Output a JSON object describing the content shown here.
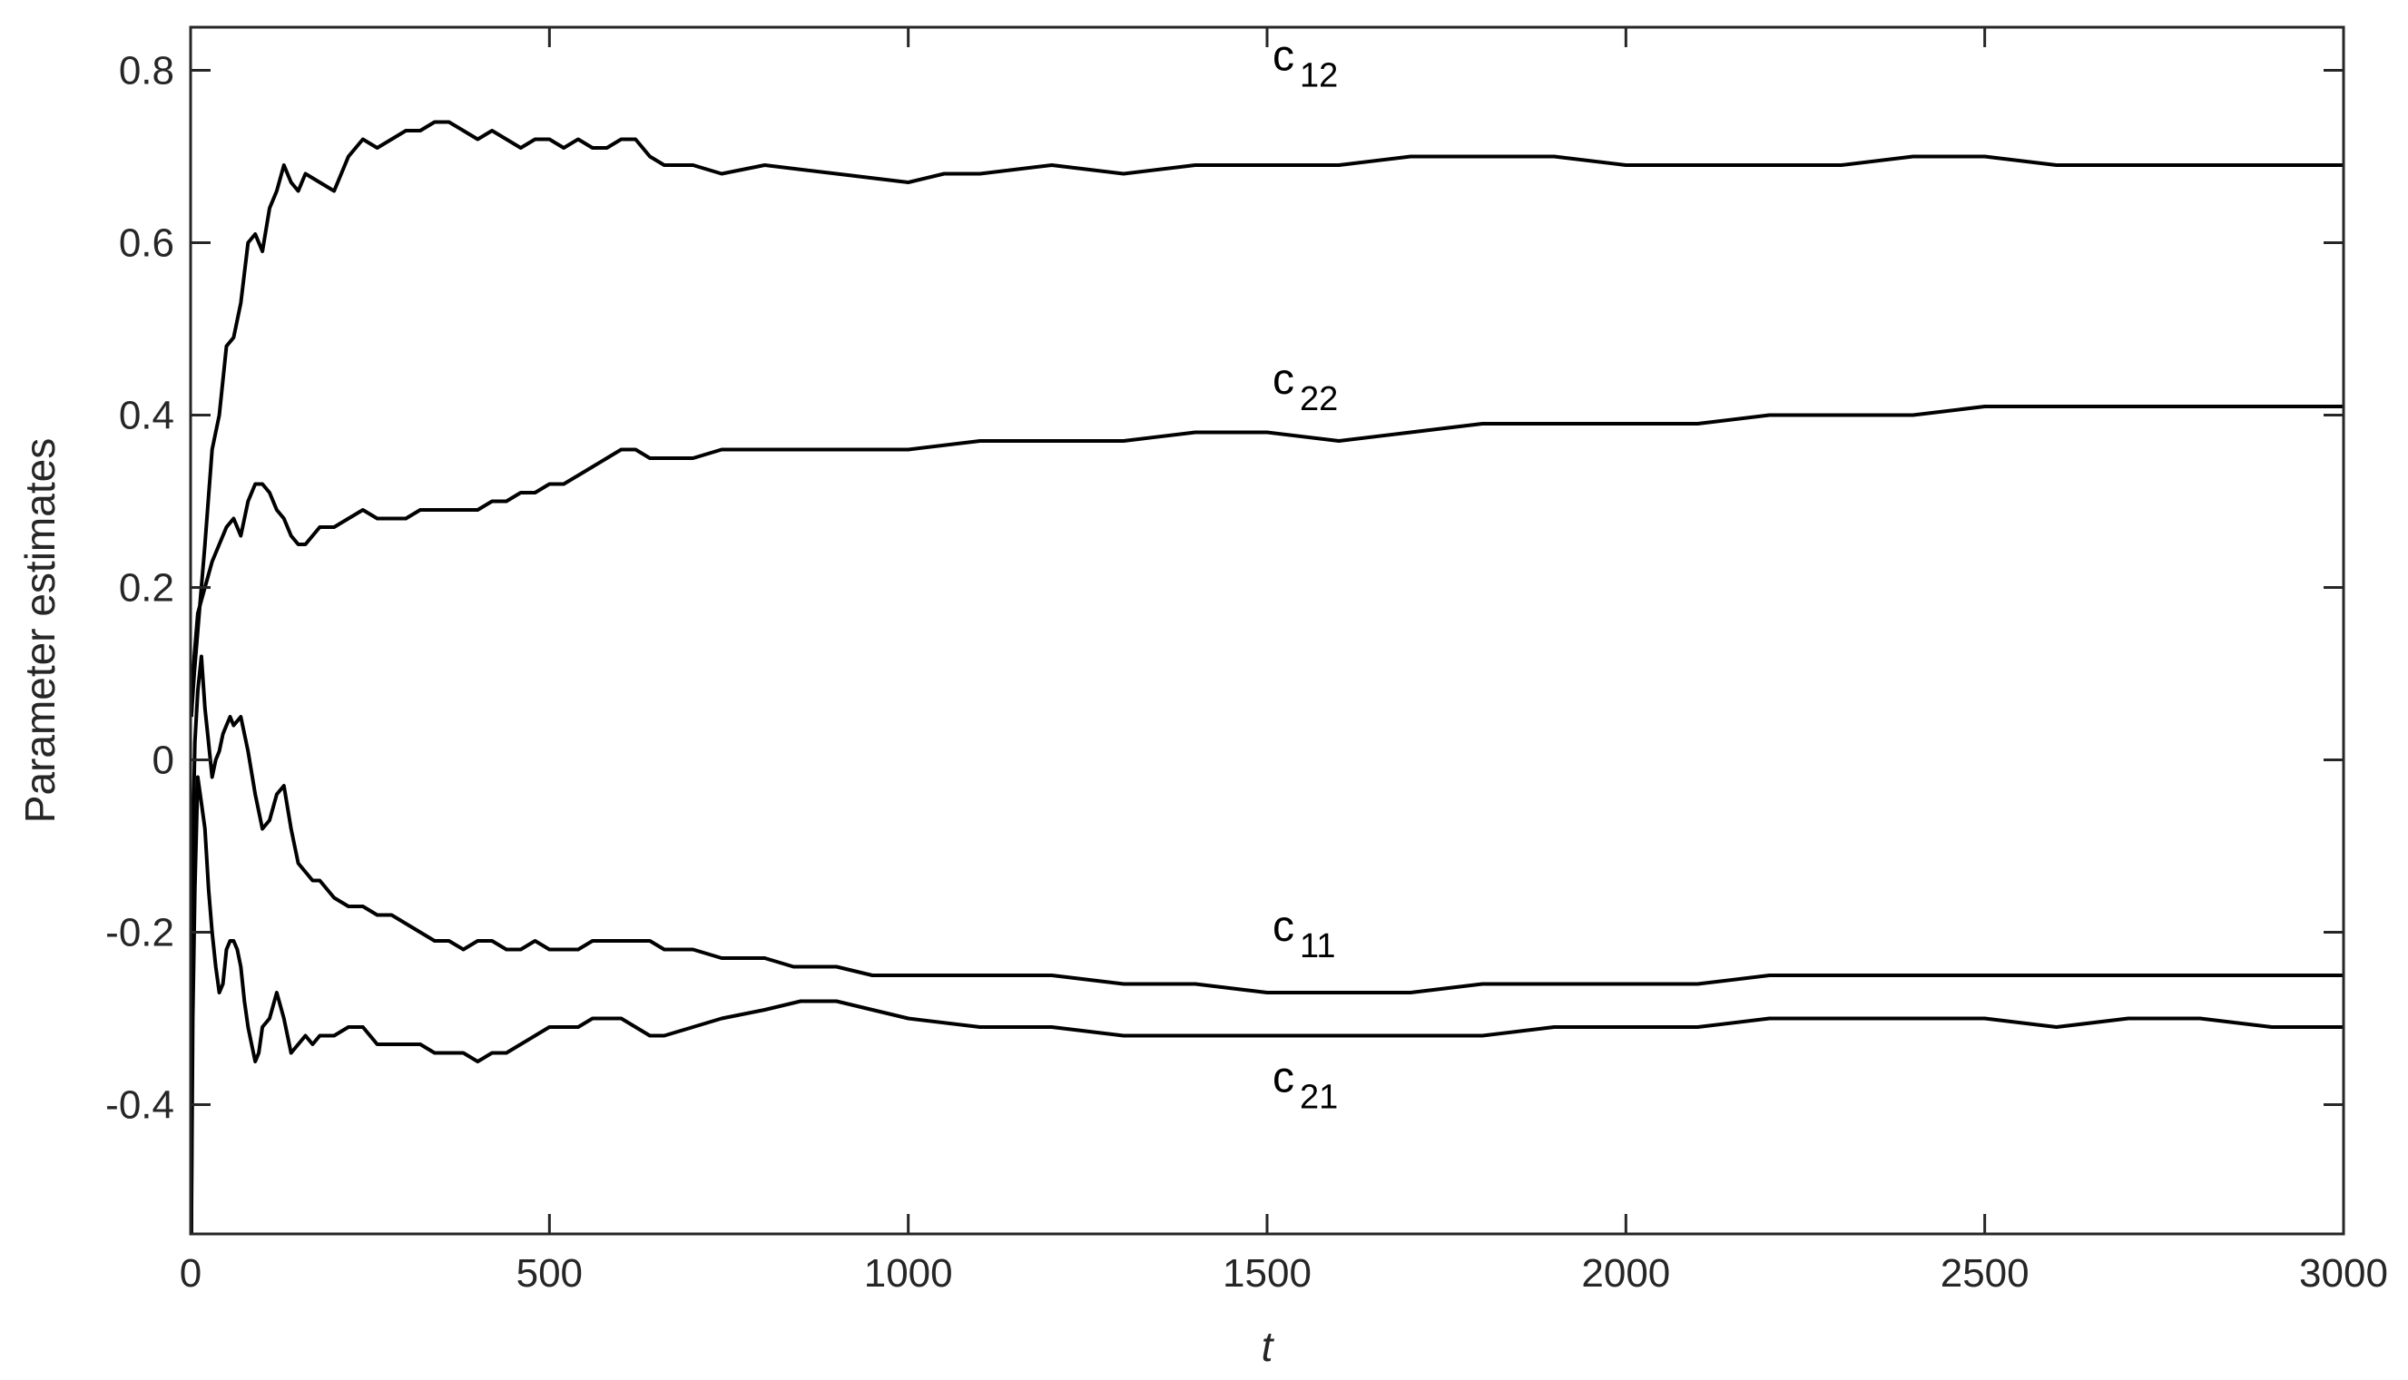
{
  "chart_data": {
    "type": "line",
    "title": "",
    "xlabel": "t",
    "ylabel": "Parameter estimates",
    "xlim": [
      0,
      3000
    ],
    "ylim": [
      -0.55,
      0.85
    ],
    "xticks": [
      0,
      500,
      1000,
      1500,
      2000,
      2500,
      3000
    ],
    "yticks": [
      -0.4,
      -0.2,
      0,
      0.2,
      0.4,
      0.6,
      0.8
    ],
    "xtick_labels": [
      "0",
      "500",
      "1000",
      "1500",
      "2000",
      "2500",
      "3000"
    ],
    "ytick_labels": [
      "-0.4",
      "-0.2",
      "0",
      "0.2",
      "0.4",
      "0.6",
      "0.8"
    ],
    "grid": false,
    "line_color": "#000000",
    "series": [
      {
        "name": "c12",
        "label_base": "c",
        "label_sub": "12",
        "label_at": [
          1500,
          0.8
        ],
        "points": [
          [
            1,
            0.05
          ],
          [
            5,
            0.1
          ],
          [
            10,
            0.15
          ],
          [
            20,
            0.25
          ],
          [
            30,
            0.36
          ],
          [
            40,
            0.4
          ],
          [
            50,
            0.48
          ],
          [
            60,
            0.49
          ],
          [
            70,
            0.53
          ],
          [
            80,
            0.6
          ],
          [
            90,
            0.61
          ],
          [
            100,
            0.59
          ],
          [
            110,
            0.64
          ],
          [
            120,
            0.66
          ],
          [
            130,
            0.69
          ],
          [
            140,
            0.67
          ],
          [
            150,
            0.66
          ],
          [
            160,
            0.68
          ],
          [
            180,
            0.67
          ],
          [
            200,
            0.66
          ],
          [
            220,
            0.7
          ],
          [
            240,
            0.72
          ],
          [
            260,
            0.71
          ],
          [
            280,
            0.72
          ],
          [
            300,
            0.73
          ],
          [
            320,
            0.73
          ],
          [
            340,
            0.74
          ],
          [
            360,
            0.74
          ],
          [
            380,
            0.73
          ],
          [
            400,
            0.72
          ],
          [
            420,
            0.73
          ],
          [
            440,
            0.72
          ],
          [
            460,
            0.71
          ],
          [
            480,
            0.72
          ],
          [
            500,
            0.72
          ],
          [
            520,
            0.71
          ],
          [
            540,
            0.72
          ],
          [
            560,
            0.71
          ],
          [
            580,
            0.71
          ],
          [
            600,
            0.72
          ],
          [
            620,
            0.72
          ],
          [
            640,
            0.7
          ],
          [
            660,
            0.69
          ],
          [
            700,
            0.69
          ],
          [
            740,
            0.68
          ],
          [
            800,
            0.69
          ],
          [
            900,
            0.68
          ],
          [
            1000,
            0.67
          ],
          [
            1050,
            0.68
          ],
          [
            1100,
            0.68
          ],
          [
            1200,
            0.69
          ],
          [
            1300,
            0.68
          ],
          [
            1400,
            0.69
          ],
          [
            1500,
            0.69
          ],
          [
            1600,
            0.69
          ],
          [
            1700,
            0.7
          ],
          [
            1800,
            0.7
          ],
          [
            1900,
            0.7
          ],
          [
            2000,
            0.69
          ],
          [
            2100,
            0.69
          ],
          [
            2200,
            0.69
          ],
          [
            2300,
            0.69
          ],
          [
            2400,
            0.7
          ],
          [
            2500,
            0.7
          ],
          [
            2600,
            0.69
          ],
          [
            2700,
            0.69
          ],
          [
            2800,
            0.69
          ],
          [
            2900,
            0.69
          ],
          [
            3000,
            0.69
          ]
        ]
      },
      {
        "name": "c22",
        "label_base": "c",
        "label_sub": "22",
        "label_at": [
          1500,
          0.425
        ],
        "points": [
          [
            1,
            0.05
          ],
          [
            5,
            0.12
          ],
          [
            10,
            0.17
          ],
          [
            20,
            0.2
          ],
          [
            30,
            0.23
          ],
          [
            40,
            0.25
          ],
          [
            50,
            0.27
          ],
          [
            60,
            0.28
          ],
          [
            70,
            0.26
          ],
          [
            80,
            0.3
          ],
          [
            90,
            0.32
          ],
          [
            100,
            0.32
          ],
          [
            110,
            0.31
          ],
          [
            120,
            0.29
          ],
          [
            130,
            0.28
          ],
          [
            140,
            0.26
          ],
          [
            150,
            0.25
          ],
          [
            160,
            0.25
          ],
          [
            170,
            0.26
          ],
          [
            180,
            0.27
          ],
          [
            200,
            0.27
          ],
          [
            220,
            0.28
          ],
          [
            240,
            0.29
          ],
          [
            260,
            0.28
          ],
          [
            280,
            0.28
          ],
          [
            300,
            0.28
          ],
          [
            320,
            0.29
          ],
          [
            340,
            0.29
          ],
          [
            360,
            0.29
          ],
          [
            380,
            0.29
          ],
          [
            400,
            0.29
          ],
          [
            420,
            0.3
          ],
          [
            440,
            0.3
          ],
          [
            460,
            0.31
          ],
          [
            480,
            0.31
          ],
          [
            500,
            0.32
          ],
          [
            520,
            0.32
          ],
          [
            540,
            0.33
          ],
          [
            560,
            0.34
          ],
          [
            580,
            0.35
          ],
          [
            600,
            0.36
          ],
          [
            620,
            0.36
          ],
          [
            640,
            0.35
          ],
          [
            660,
            0.35
          ],
          [
            700,
            0.35
          ],
          [
            740,
            0.36
          ],
          [
            800,
            0.36
          ],
          [
            900,
            0.36
          ],
          [
            1000,
            0.36
          ],
          [
            1100,
            0.37
          ],
          [
            1200,
            0.37
          ],
          [
            1300,
            0.37
          ],
          [
            1400,
            0.38
          ],
          [
            1500,
            0.38
          ],
          [
            1600,
            0.37
          ],
          [
            1700,
            0.38
          ],
          [
            1800,
            0.39
          ],
          [
            1900,
            0.39
          ],
          [
            2000,
            0.39
          ],
          [
            2100,
            0.39
          ],
          [
            2200,
            0.4
          ],
          [
            2300,
            0.4
          ],
          [
            2400,
            0.4
          ],
          [
            2500,
            0.41
          ],
          [
            2600,
            0.41
          ],
          [
            2700,
            0.41
          ],
          [
            2800,
            0.41
          ],
          [
            2900,
            0.41
          ],
          [
            3000,
            0.41
          ]
        ]
      },
      {
        "name": "c11",
        "label_base": "c",
        "label_sub": "11",
        "label_at": [
          1500,
          -0.21
        ],
        "points": [
          [
            1,
            -0.55
          ],
          [
            3,
            -0.1
          ],
          [
            6,
            0.02
          ],
          [
            10,
            0.08
          ],
          [
            15,
            0.12
          ],
          [
            20,
            0.06
          ],
          [
            25,
            0.02
          ],
          [
            30,
            -0.02
          ],
          [
            35,
            0.0
          ],
          [
            40,
            0.01
          ],
          [
            45,
            0.03
          ],
          [
            50,
            0.04
          ],
          [
            55,
            0.05
          ],
          [
            60,
            0.04
          ],
          [
            70,
            0.05
          ],
          [
            80,
            0.01
          ],
          [
            90,
            -0.04
          ],
          [
            100,
            -0.08
          ],
          [
            110,
            -0.07
          ],
          [
            120,
            -0.04
          ],
          [
            130,
            -0.03
          ],
          [
            140,
            -0.08
          ],
          [
            150,
            -0.12
          ],
          [
            160,
            -0.13
          ],
          [
            170,
            -0.14
          ],
          [
            180,
            -0.14
          ],
          [
            200,
            -0.16
          ],
          [
            220,
            -0.17
          ],
          [
            240,
            -0.17
          ],
          [
            260,
            -0.18
          ],
          [
            280,
            -0.18
          ],
          [
            300,
            -0.19
          ],
          [
            320,
            -0.2
          ],
          [
            340,
            -0.21
          ],
          [
            360,
            -0.21
          ],
          [
            380,
            -0.22
          ],
          [
            400,
            -0.21
          ],
          [
            420,
            -0.21
          ],
          [
            440,
            -0.22
          ],
          [
            460,
            -0.22
          ],
          [
            480,
            -0.21
          ],
          [
            500,
            -0.22
          ],
          [
            520,
            -0.22
          ],
          [
            540,
            -0.22
          ],
          [
            560,
            -0.21
          ],
          [
            580,
            -0.21
          ],
          [
            600,
            -0.21
          ],
          [
            620,
            -0.21
          ],
          [
            640,
            -0.21
          ],
          [
            660,
            -0.22
          ],
          [
            700,
            -0.22
          ],
          [
            740,
            -0.23
          ],
          [
            800,
            -0.23
          ],
          [
            840,
            -0.24
          ],
          [
            900,
            -0.24
          ],
          [
            950,
            -0.25
          ],
          [
            1000,
            -0.25
          ],
          [
            1100,
            -0.25
          ],
          [
            1200,
            -0.25
          ],
          [
            1300,
            -0.26
          ],
          [
            1400,
            -0.26
          ],
          [
            1500,
            -0.27
          ],
          [
            1600,
            -0.27
          ],
          [
            1700,
            -0.27
          ],
          [
            1800,
            -0.26
          ],
          [
            1900,
            -0.26
          ],
          [
            2000,
            -0.26
          ],
          [
            2100,
            -0.26
          ],
          [
            2200,
            -0.25
          ],
          [
            2300,
            -0.25
          ],
          [
            2400,
            -0.25
          ],
          [
            2500,
            -0.25
          ],
          [
            2600,
            -0.25
          ],
          [
            2700,
            -0.25
          ],
          [
            2800,
            -0.25
          ],
          [
            2900,
            -0.25
          ],
          [
            3000,
            -0.25
          ]
        ]
      },
      {
        "name": "c21",
        "label_base": "c",
        "label_sub": "21",
        "label_at": [
          1500,
          -0.385
        ],
        "points": [
          [
            1,
            -0.55
          ],
          [
            3,
            -0.3
          ],
          [
            6,
            -0.15
          ],
          [
            10,
            -0.02
          ],
          [
            15,
            -0.05
          ],
          [
            20,
            -0.08
          ],
          [
            25,
            -0.15
          ],
          [
            30,
            -0.2
          ],
          [
            35,
            -0.24
          ],
          [
            40,
            -0.27
          ],
          [
            45,
            -0.26
          ],
          [
            50,
            -0.22
          ],
          [
            55,
            -0.21
          ],
          [
            60,
            -0.21
          ],
          [
            65,
            -0.22
          ],
          [
            70,
            -0.24
          ],
          [
            75,
            -0.28
          ],
          [
            80,
            -0.31
          ],
          [
            85,
            -0.33
          ],
          [
            90,
            -0.35
          ],
          [
            95,
            -0.34
          ],
          [
            100,
            -0.31
          ],
          [
            110,
            -0.3
          ],
          [
            120,
            -0.27
          ],
          [
            130,
            -0.3
          ],
          [
            140,
            -0.34
          ],
          [
            150,
            -0.33
          ],
          [
            160,
            -0.32
          ],
          [
            170,
            -0.33
          ],
          [
            180,
            -0.32
          ],
          [
            200,
            -0.32
          ],
          [
            220,
            -0.31
          ],
          [
            240,
            -0.31
          ],
          [
            260,
            -0.33
          ],
          [
            280,
            -0.33
          ],
          [
            300,
            -0.33
          ],
          [
            320,
            -0.33
          ],
          [
            340,
            -0.34
          ],
          [
            360,
            -0.34
          ],
          [
            380,
            -0.34
          ],
          [
            400,
            -0.35
          ],
          [
            420,
            -0.34
          ],
          [
            440,
            -0.34
          ],
          [
            460,
            -0.33
          ],
          [
            480,
            -0.32
          ],
          [
            500,
            -0.31
          ],
          [
            520,
            -0.31
          ],
          [
            540,
            -0.31
          ],
          [
            560,
            -0.3
          ],
          [
            580,
            -0.3
          ],
          [
            600,
            -0.3
          ],
          [
            620,
            -0.31
          ],
          [
            640,
            -0.32
          ],
          [
            660,
            -0.32
          ],
          [
            700,
            -0.31
          ],
          [
            740,
            -0.3
          ],
          [
            800,
            -0.29
          ],
          [
            850,
            -0.28
          ],
          [
            880,
            -0.28
          ],
          [
            900,
            -0.28
          ],
          [
            950,
            -0.29
          ],
          [
            1000,
            -0.3
          ],
          [
            1100,
            -0.31
          ],
          [
            1200,
            -0.31
          ],
          [
            1300,
            -0.32
          ],
          [
            1400,
            -0.32
          ],
          [
            1500,
            -0.32
          ],
          [
            1600,
            -0.32
          ],
          [
            1700,
            -0.32
          ],
          [
            1800,
            -0.32
          ],
          [
            1900,
            -0.31
          ],
          [
            2000,
            -0.31
          ],
          [
            2100,
            -0.31
          ],
          [
            2200,
            -0.3
          ],
          [
            2300,
            -0.3
          ],
          [
            2400,
            -0.3
          ],
          [
            2500,
            -0.3
          ],
          [
            2600,
            -0.31
          ],
          [
            2700,
            -0.3
          ],
          [
            2800,
            -0.3
          ],
          [
            2900,
            -0.31
          ],
          [
            3000,
            -0.31
          ]
        ]
      }
    ]
  }
}
